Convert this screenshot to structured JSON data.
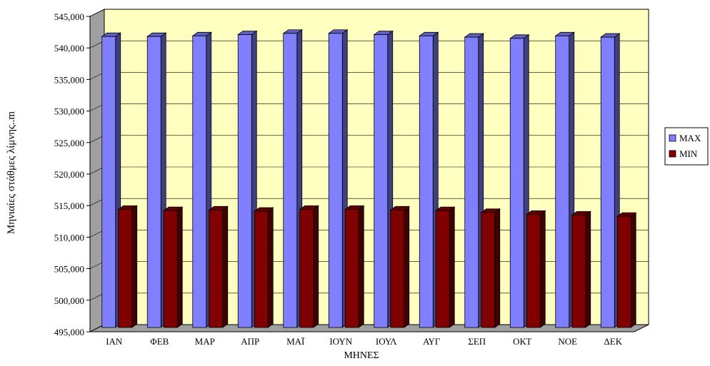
{
  "chart_data": {
    "type": "bar",
    "title": "",
    "xlabel": "ΜΗΝΕΣ",
    "ylabel": "Μηνιαίες στάθμες λίμνης..m",
    "ylim": [
      495000,
      545000
    ],
    "yticks": [
      "495,000",
      "500,000",
      "505,000",
      "510,000",
      "515,000",
      "520,000",
      "525,000",
      "530,000",
      "535,000",
      "540,000",
      "545,000"
    ],
    "categories": [
      "ΙΑΝ",
      "ΦΕΒ",
      "ΜΑΡ",
      "ΑΠΡ",
      "ΜΑΪ",
      "ΙΟΥΝ",
      "ΙΟΥΛ",
      "ΑΥΓ",
      "ΣΕΠ",
      "ΟΚΤ",
      "ΝΟΕ",
      "ΔΕΚ"
    ],
    "series": [
      {
        "name": "MAX",
        "values": [
          541700,
          541700,
          541800,
          542000,
          542200,
          542200,
          542000,
          541800,
          541600,
          541400,
          541800,
          541600
        ]
      },
      {
        "name": "MIN",
        "values": [
          514300,
          514100,
          514200,
          514000,
          514300,
          514300,
          514200,
          514100,
          513800,
          513500,
          513400,
          513200
        ]
      }
    ],
    "legend_position": "right",
    "grid": true,
    "colors": {
      "plot_background": "#ffffc0",
      "max_front": "#8080ff",
      "max_side": "#404080",
      "max_top": "#6060c0",
      "min_front": "#800000",
      "min_side": "#400000",
      "min_top": "#600000"
    }
  }
}
